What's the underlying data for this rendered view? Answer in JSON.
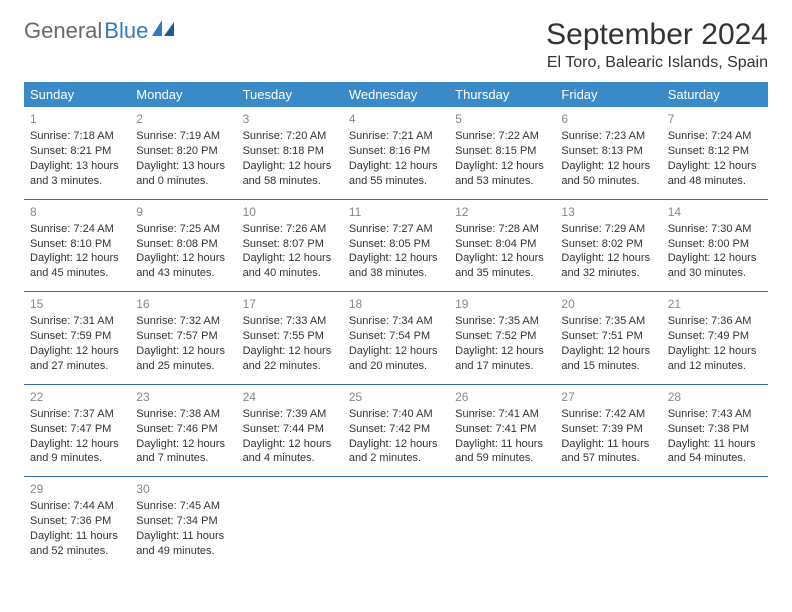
{
  "brand": {
    "part1": "General",
    "part2": "Blue"
  },
  "title": "September 2024",
  "location": "El Toro, Balearic Islands, Spain",
  "colors": {
    "header_bg": "#3a8ac8",
    "header_text": "#ffffff",
    "row_divider": "#2f6fa5",
    "daynum": "#888888",
    "body_text": "#333333",
    "logo_gray": "#6a6a6a",
    "logo_blue": "#2f7bbf",
    "page_bg": "#ffffff"
  },
  "weekdays": [
    "Sunday",
    "Monday",
    "Tuesday",
    "Wednesday",
    "Thursday",
    "Friday",
    "Saturday"
  ],
  "weeks": [
    [
      {
        "day": "1",
        "sunrise": "Sunrise: 7:18 AM",
        "sunset": "Sunset: 8:21 PM",
        "daylight": "Daylight: 13 hours and 3 minutes."
      },
      {
        "day": "2",
        "sunrise": "Sunrise: 7:19 AM",
        "sunset": "Sunset: 8:20 PM",
        "daylight": "Daylight: 13 hours and 0 minutes."
      },
      {
        "day": "3",
        "sunrise": "Sunrise: 7:20 AM",
        "sunset": "Sunset: 8:18 PM",
        "daylight": "Daylight: 12 hours and 58 minutes."
      },
      {
        "day": "4",
        "sunrise": "Sunrise: 7:21 AM",
        "sunset": "Sunset: 8:16 PM",
        "daylight": "Daylight: 12 hours and 55 minutes."
      },
      {
        "day": "5",
        "sunrise": "Sunrise: 7:22 AM",
        "sunset": "Sunset: 8:15 PM",
        "daylight": "Daylight: 12 hours and 53 minutes."
      },
      {
        "day": "6",
        "sunrise": "Sunrise: 7:23 AM",
        "sunset": "Sunset: 8:13 PM",
        "daylight": "Daylight: 12 hours and 50 minutes."
      },
      {
        "day": "7",
        "sunrise": "Sunrise: 7:24 AM",
        "sunset": "Sunset: 8:12 PM",
        "daylight": "Daylight: 12 hours and 48 minutes."
      }
    ],
    [
      {
        "day": "8",
        "sunrise": "Sunrise: 7:24 AM",
        "sunset": "Sunset: 8:10 PM",
        "daylight": "Daylight: 12 hours and 45 minutes."
      },
      {
        "day": "9",
        "sunrise": "Sunrise: 7:25 AM",
        "sunset": "Sunset: 8:08 PM",
        "daylight": "Daylight: 12 hours and 43 minutes."
      },
      {
        "day": "10",
        "sunrise": "Sunrise: 7:26 AM",
        "sunset": "Sunset: 8:07 PM",
        "daylight": "Daylight: 12 hours and 40 minutes."
      },
      {
        "day": "11",
        "sunrise": "Sunrise: 7:27 AM",
        "sunset": "Sunset: 8:05 PM",
        "daylight": "Daylight: 12 hours and 38 minutes."
      },
      {
        "day": "12",
        "sunrise": "Sunrise: 7:28 AM",
        "sunset": "Sunset: 8:04 PM",
        "daylight": "Daylight: 12 hours and 35 minutes."
      },
      {
        "day": "13",
        "sunrise": "Sunrise: 7:29 AM",
        "sunset": "Sunset: 8:02 PM",
        "daylight": "Daylight: 12 hours and 32 minutes."
      },
      {
        "day": "14",
        "sunrise": "Sunrise: 7:30 AM",
        "sunset": "Sunset: 8:00 PM",
        "daylight": "Daylight: 12 hours and 30 minutes."
      }
    ],
    [
      {
        "day": "15",
        "sunrise": "Sunrise: 7:31 AM",
        "sunset": "Sunset: 7:59 PM",
        "daylight": "Daylight: 12 hours and 27 minutes."
      },
      {
        "day": "16",
        "sunrise": "Sunrise: 7:32 AM",
        "sunset": "Sunset: 7:57 PM",
        "daylight": "Daylight: 12 hours and 25 minutes."
      },
      {
        "day": "17",
        "sunrise": "Sunrise: 7:33 AM",
        "sunset": "Sunset: 7:55 PM",
        "daylight": "Daylight: 12 hours and 22 minutes."
      },
      {
        "day": "18",
        "sunrise": "Sunrise: 7:34 AM",
        "sunset": "Sunset: 7:54 PM",
        "daylight": "Daylight: 12 hours and 20 minutes."
      },
      {
        "day": "19",
        "sunrise": "Sunrise: 7:35 AM",
        "sunset": "Sunset: 7:52 PM",
        "daylight": "Daylight: 12 hours and 17 minutes."
      },
      {
        "day": "20",
        "sunrise": "Sunrise: 7:35 AM",
        "sunset": "Sunset: 7:51 PM",
        "daylight": "Daylight: 12 hours and 15 minutes."
      },
      {
        "day": "21",
        "sunrise": "Sunrise: 7:36 AM",
        "sunset": "Sunset: 7:49 PM",
        "daylight": "Daylight: 12 hours and 12 minutes."
      }
    ],
    [
      {
        "day": "22",
        "sunrise": "Sunrise: 7:37 AM",
        "sunset": "Sunset: 7:47 PM",
        "daylight": "Daylight: 12 hours and 9 minutes."
      },
      {
        "day": "23",
        "sunrise": "Sunrise: 7:38 AM",
        "sunset": "Sunset: 7:46 PM",
        "daylight": "Daylight: 12 hours and 7 minutes."
      },
      {
        "day": "24",
        "sunrise": "Sunrise: 7:39 AM",
        "sunset": "Sunset: 7:44 PM",
        "daylight": "Daylight: 12 hours and 4 minutes."
      },
      {
        "day": "25",
        "sunrise": "Sunrise: 7:40 AM",
        "sunset": "Sunset: 7:42 PM",
        "daylight": "Daylight: 12 hours and 2 minutes."
      },
      {
        "day": "26",
        "sunrise": "Sunrise: 7:41 AM",
        "sunset": "Sunset: 7:41 PM",
        "daylight": "Daylight: 11 hours and 59 minutes."
      },
      {
        "day": "27",
        "sunrise": "Sunrise: 7:42 AM",
        "sunset": "Sunset: 7:39 PM",
        "daylight": "Daylight: 11 hours and 57 minutes."
      },
      {
        "day": "28",
        "sunrise": "Sunrise: 7:43 AM",
        "sunset": "Sunset: 7:38 PM",
        "daylight": "Daylight: 11 hours and 54 minutes."
      }
    ],
    [
      {
        "day": "29",
        "sunrise": "Sunrise: 7:44 AM",
        "sunset": "Sunset: 7:36 PM",
        "daylight": "Daylight: 11 hours and 52 minutes."
      },
      {
        "day": "30",
        "sunrise": "Sunrise: 7:45 AM",
        "sunset": "Sunset: 7:34 PM",
        "daylight": "Daylight: 11 hours and 49 minutes."
      },
      null,
      null,
      null,
      null,
      null
    ]
  ]
}
